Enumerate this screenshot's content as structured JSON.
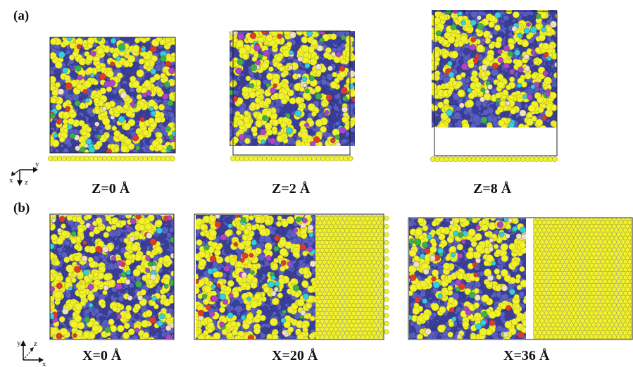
{
  "panels": {
    "a": {
      "label": "(a)",
      "captions": [
        "Z=0 Å",
        "Z=2 Å",
        "Z=8 Å"
      ]
    },
    "b": {
      "label": "(b)",
      "captions": [
        "X=0 Å",
        "X=20 Å",
        "X=36 Å"
      ]
    }
  },
  "axes": {
    "a": {
      "h": "y",
      "v": "z",
      "d": "x"
    },
    "b": {
      "v": "y",
      "d": "z",
      "h": "x"
    }
  },
  "colors": {
    "matrix": "#3b3f9a",
    "matrix_light": "#5a5fc2",
    "sulfur_yellow": "#f2f22a",
    "red": "#e23a2a",
    "cyan": "#2fd0e0",
    "green": "#37b24d",
    "beige": "#efe0c5",
    "magenta": "#b043c8",
    "surface": "#f2f22a",
    "surface_outline": "#9a9a10",
    "box": "#222222"
  }
}
